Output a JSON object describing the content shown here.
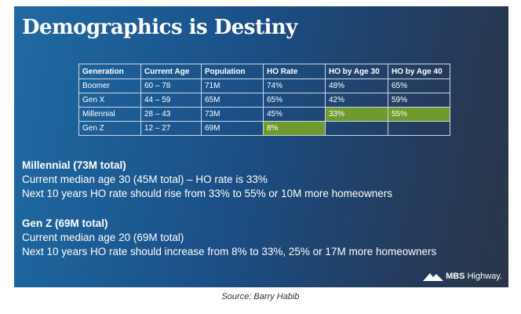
{
  "title": "Demographics is Destiny",
  "table": {
    "headers": [
      "Generation",
      "Current Age",
      "Population",
      "HO Rate",
      "HO by Age 30",
      "HO by Age 40"
    ],
    "rows": [
      [
        "Boomer",
        "60 – 78",
        "71M",
        "74%",
        "48%",
        "65%"
      ],
      [
        "Gen X",
        "44 – 59",
        "65M",
        "65%",
        "42%",
        "59%"
      ],
      [
        "Millennial",
        "28 – 43",
        "73M",
        "45%",
        "33%",
        "55%"
      ],
      [
        "Gen Z",
        "12 – 27",
        "69M",
        "8%",
        "",
        ""
      ]
    ],
    "highlight_color": "#6e9a2e"
  },
  "millennial": {
    "heading": "Millennial (73M total)",
    "line1": "Current median age 30 (45M total) – HO rate is 33%",
    "line2": "Next 10 years HO rate should rise from 33% to 55% or 10M more homeowners"
  },
  "genz": {
    "heading": "Gen Z (69M total)",
    "line1": "Current median age 20 (69M total)",
    "line2": "Next 10 years HO rate should increase from 8% to 33%, 25% or 17M more homeowners"
  },
  "logo": {
    "brand": "MBS",
    "suffix": " Highway.",
    "icon": "mountain-icon"
  },
  "caption": "Source: Barry Habib"
}
